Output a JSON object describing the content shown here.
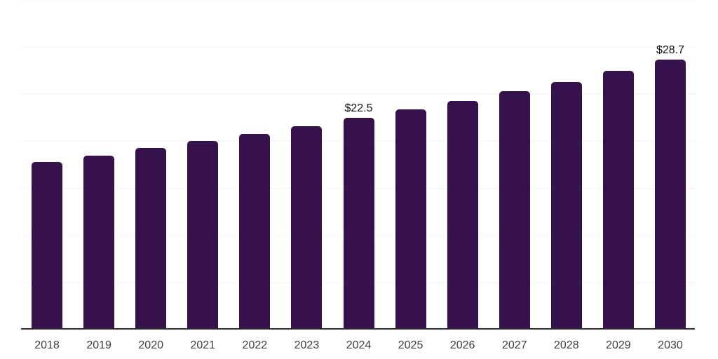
{
  "chart_data": {
    "type": "bar",
    "title": "",
    "xlabel": "",
    "ylabel": "",
    "categories": [
      "2018",
      "2019",
      "2020",
      "2021",
      "2022",
      "2023",
      "2024",
      "2025",
      "2026",
      "2027",
      "2028",
      "2029",
      "2030"
    ],
    "values": [
      17.8,
      18.5,
      19.3,
      20.0,
      20.8,
      21.6,
      22.5,
      23.4,
      24.3,
      25.3,
      26.3,
      27.5,
      28.7
    ],
    "data_labels": [
      "",
      "",
      "",
      "",
      "",
      "",
      "$22.5",
      "",
      "",
      "",
      "",
      "",
      "$28.7"
    ],
    "ylim": [
      0,
      35
    ],
    "gridline_step": 5,
    "grid": true,
    "legend": "none",
    "colors": {
      "bar": "#36124d",
      "gridline": "#f0f0f0",
      "axis_line": "#2d2d2d",
      "data_label": "#111111",
      "tick_label": "#3d3d3d",
      "background": "#ffffff"
    }
  }
}
